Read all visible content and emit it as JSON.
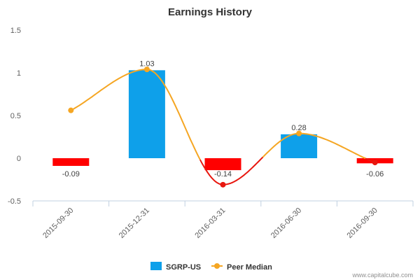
{
  "chart_data": {
    "type": "bar",
    "title": "Earnings History",
    "categories": [
      "2015-09-30",
      "2015-12-31",
      "2016-03-31",
      "2016-06-30",
      "2016-09-30"
    ],
    "series": [
      {
        "name": "SGRP-US",
        "type": "bar",
        "values": [
          -0.09,
          1.03,
          -0.14,
          0.28,
          -0.06
        ],
        "data_labels": [
          "-0.09",
          "1.03",
          "-0.14",
          "0.28",
          "-0.06"
        ],
        "color_positive": "#0ea0ea",
        "color_negative": "#ff0000"
      },
      {
        "name": "Peer Median",
        "type": "line",
        "values": [
          0.56,
          1.04,
          -0.31,
          0.29,
          -0.05
        ],
        "color": "#f5a623",
        "color_negative": "#e8170f"
      }
    ],
    "ylim": [
      -0.5,
      1.5
    ],
    "yticks": [
      "1.5",
      "1",
      "0.5",
      "0",
      "-0.5"
    ],
    "ytick_values": [
      1.5,
      1,
      0.5,
      0,
      -0.5
    ],
    "grid": false,
    "legend_position": "bottom-center"
  },
  "credit": "www.capitalcube.com"
}
